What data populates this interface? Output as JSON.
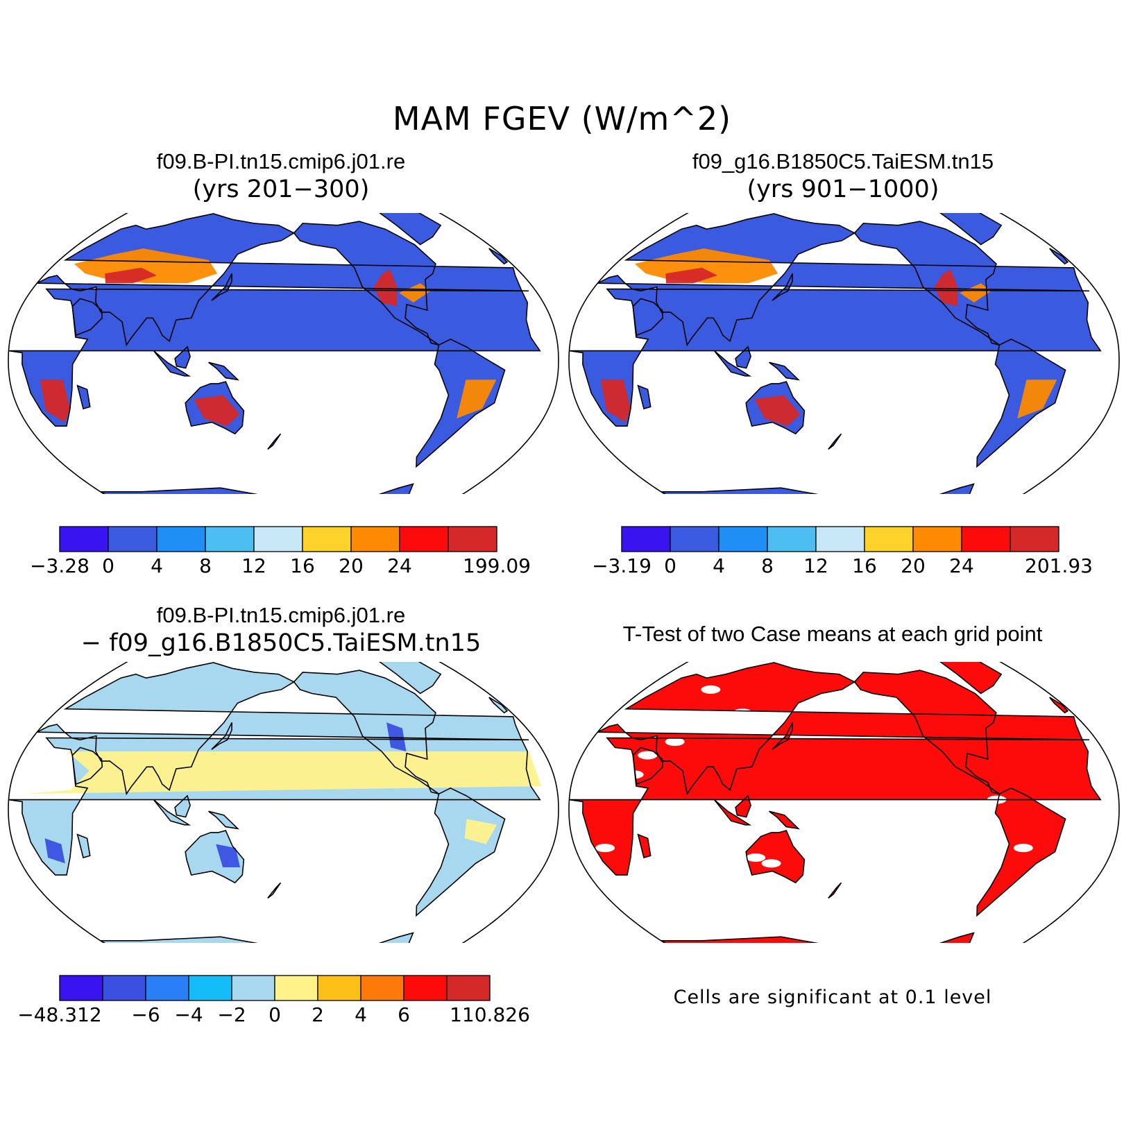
{
  "title": "MAM FGEV (W/m^2)",
  "panels": [
    {
      "id": "case1",
      "title": "f09.B-PI.tn15.cmip6.j01.re",
      "subtitle": "(yrs 201−300)"
    },
    {
      "id": "case2",
      "title": "f09_g16.B1850C5.TaiESM.tn15",
      "subtitle": "(yrs 901−1000)"
    },
    {
      "id": "diff",
      "title": "f09.B-PI.tn15.cmip6.j01.re",
      "subtitle": "− f09_g16.B1850C5.TaiESM.tn15"
    },
    {
      "id": "ttest",
      "title": "T-Test of two Case means at each grid point",
      "footnote": "Cells are significant at 0.1 level"
    }
  ],
  "colorbars": {
    "case1": {
      "colors": [
        "#3a14f0",
        "#3a5be0",
        "#1f8ef5",
        "#4dbef2",
        "#c8e8f8",
        "#fdd32b",
        "#fd8a00",
        "#fd0a0a",
        "#d52828"
      ],
      "labels": [
        "−3.28",
        "0",
        "4",
        "8",
        "12",
        "16",
        "20",
        "24",
        "199.09"
      ]
    },
    "case2": {
      "colors": [
        "#3a14f0",
        "#3a5be0",
        "#1f8ef5",
        "#4dbef2",
        "#c8e8f8",
        "#fdd32b",
        "#fd8a00",
        "#fd0a0a",
        "#d52828"
      ],
      "labels": [
        "−3.19",
        "0",
        "4",
        "8",
        "12",
        "16",
        "20",
        "24",
        "201.93"
      ]
    },
    "diff": {
      "colors": [
        "#3a14f0",
        "#3a50e0",
        "#2a7ef8",
        "#14bcf8",
        "#a7d8f0",
        "#fff28a",
        "#fdc018",
        "#fd7a0a",
        "#fd0a0a",
        "#d52828"
      ],
      "labels": [
        "−48.312",
        "−6",
        "−4",
        "−2",
        "0",
        "2",
        "4",
        "6",
        "110.826"
      ]
    }
  },
  "map_palette": {
    "ocean": "#ffffff",
    "coast": "#000000",
    "case_base": "#3a5be0",
    "case_warm": "#fd8a00",
    "case_hot": "#d52828",
    "diff_base": "#a7d8f0",
    "diff_pos": "#fff28a",
    "diff_neg": "#3a50e0",
    "significant": "#fd0a0a"
  }
}
